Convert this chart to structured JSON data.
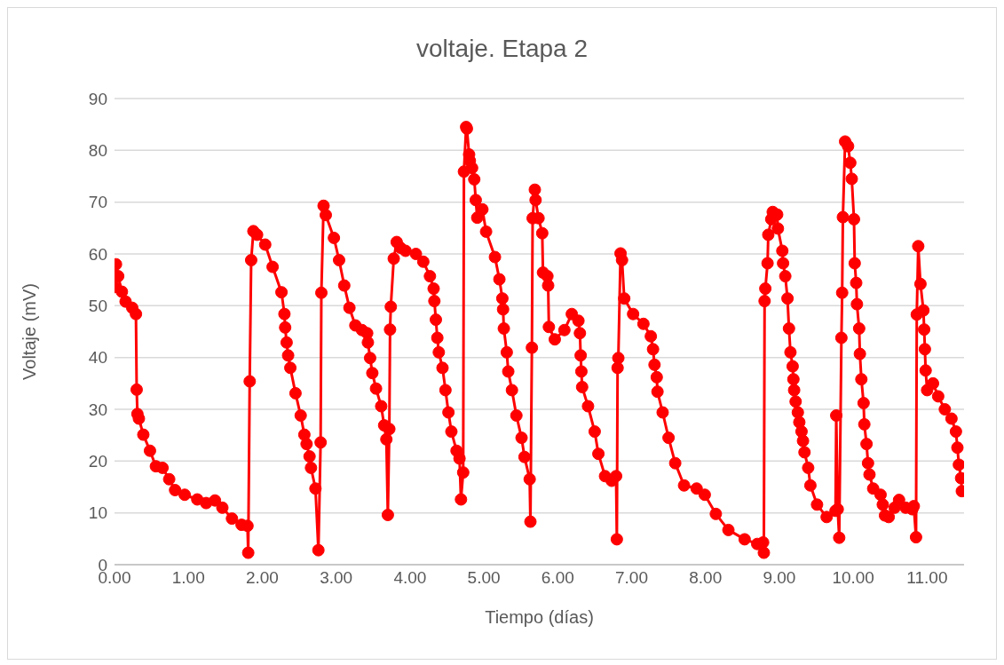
{
  "chart_data": {
    "type": "line",
    "title": "voltaje. Etapa 2",
    "xlabel": "Tiempo (días)",
    "ylabel": "Voltaje (mV)",
    "x": [
      0.0,
      0.02,
      0.05,
      0.1,
      0.15,
      0.24,
      0.29,
      0.3,
      0.31,
      0.33,
      0.39,
      0.48,
      0.56,
      0.65,
      0.74,
      0.82,
      0.95,
      1.12,
      1.24,
      1.36,
      1.46,
      1.59,
      1.72,
      1.8,
      1.81,
      1.83,
      1.85,
      1.88,
      1.93,
      2.04,
      2.14,
      2.26,
      2.3,
      2.31,
      2.33,
      2.35,
      2.38,
      2.45,
      2.52,
      2.57,
      2.6,
      2.64,
      2.66,
      2.72,
      2.76,
      2.79,
      2.8,
      2.83,
      2.86,
      2.97,
      3.04,
      3.11,
      3.18,
      3.26,
      3.35,
      3.42,
      3.43,
      3.46,
      3.49,
      3.54,
      3.61,
      3.65,
      3.68,
      3.7,
      3.72,
      3.73,
      3.74,
      3.78,
      3.82,
      3.87,
      3.94,
      4.08,
      4.18,
      4.27,
      4.32,
      4.33,
      4.35,
      4.37,
      4.39,
      4.44,
      4.48,
      4.52,
      4.56,
      4.63,
      4.67,
      4.69,
      4.72,
      4.73,
      4.76,
      4.77,
      4.8,
      4.81,
      4.84,
      4.87,
      4.89,
      4.91,
      4.98,
      5.03,
      5.15,
      5.21,
      5.25,
      5.26,
      5.27,
      5.31,
      5.33,
      5.38,
      5.44,
      5.51,
      5.55,
      5.62,
      5.63,
      5.65,
      5.66,
      5.69,
      5.7,
      5.74,
      5.79,
      5.8,
      5.86,
      5.87,
      5.88,
      5.96,
      6.09,
      6.19,
      6.28,
      6.3,
      6.31,
      6.32,
      6.33,
      6.41,
      6.5,
      6.55,
      6.64,
      6.73,
      6.79,
      6.8,
      6.81,
      6.82,
      6.85,
      6.87,
      6.9,
      7.02,
      7.16,
      7.26,
      7.29,
      7.31,
      7.34,
      7.35,
      7.42,
      7.5,
      7.59,
      7.71,
      7.88,
      7.99,
      8.14,
      8.31,
      8.53,
      8.7,
      8.78,
      8.79,
      8.8,
      8.81,
      8.84,
      8.85,
      8.89,
      8.91,
      8.97,
      8.98,
      9.04,
      9.05,
      9.08,
      9.11,
      9.13,
      9.15,
      9.18,
      9.19,
      9.2,
      9.22,
      9.25,
      9.27,
      9.3,
      9.32,
      9.34,
      9.39,
      9.42,
      9.51,
      9.64,
      9.76,
      9.77,
      9.79,
      9.81,
      9.84,
      9.85,
      9.86,
      9.89,
      9.93,
      9.96,
      9.98,
      10.01,
      10.02,
      10.04,
      10.05,
      10.08,
      10.09,
      10.11,
      10.14,
      10.15,
      10.18,
      10.2,
      10.22,
      10.27,
      10.37,
      10.4,
      10.43,
      10.48,
      10.56,
      10.62,
      10.71,
      10.8,
      10.82,
      10.85,
      10.86,
      10.88,
      10.91,
      10.95,
      10.96,
      10.97,
      10.98,
      11.0,
      11.08,
      11.15,
      11.24,
      11.33,
      11.39,
      11.41,
      11.43,
      11.46,
      11.47
    ],
    "series": [
      {
        "color": "#ff0000",
        "values": [
          53.6,
          58.0,
          55.7,
          52.7,
          50.8,
          49.6,
          48.4,
          33.8,
          29.1,
          28.2,
          25.1,
          22.0,
          19.0,
          18.7,
          16.5,
          14.4,
          13.5,
          12.6,
          11.9,
          12.4,
          11.0,
          8.9,
          7.7,
          7.5,
          2.3,
          35.4,
          58.8,
          64.4,
          63.7,
          61.8,
          57.5,
          52.6,
          48.4,
          45.8,
          42.9,
          40.4,
          38.0,
          33.1,
          28.8,
          25.1,
          23.3,
          20.9,
          18.7,
          14.7,
          2.8,
          23.6,
          52.5,
          69.3,
          67.5,
          63.1,
          58.8,
          53.9,
          49.6,
          46.2,
          45.3,
          44.7,
          42.9,
          39.9,
          37.0,
          34.0,
          30.6,
          26.9,
          24.2,
          9.6,
          26.2,
          45.4,
          49.8,
          59.1,
          62.3,
          61.2,
          60.6,
          60.0,
          58.5,
          55.7,
          53.3,
          50.9,
          47.3,
          43.8,
          41.0,
          38.0,
          33.7,
          29.4,
          25.7,
          22.0,
          20.5,
          12.6,
          17.8,
          75.9,
          84.5,
          84.2,
          79.2,
          78.0,
          76.6,
          74.4,
          70.4,
          67.0,
          68.6,
          64.3,
          59.4,
          55.1,
          51.4,
          49.3,
          45.6,
          41.0,
          37.3,
          33.7,
          28.8,
          24.5,
          20.8,
          16.5,
          8.3,
          41.9,
          66.9,
          72.4,
          70.4,
          66.9,
          64.0,
          56.4,
          55.7,
          53.9,
          45.9,
          43.5,
          45.3,
          48.4,
          47.1,
          44.7,
          40.4,
          37.3,
          34.3,
          30.6,
          25.7,
          21.4,
          17.1,
          16.2,
          17.1,
          4.9,
          38.0,
          39.9,
          60.1,
          58.8,
          51.4,
          48.4,
          46.5,
          44.1,
          41.6,
          38.6,
          36.2,
          33.4,
          29.4,
          24.5,
          19.6,
          15.3,
          14.7,
          13.5,
          9.8,
          6.7,
          4.9,
          4.0,
          4.3,
          2.3,
          50.9,
          53.3,
          58.2,
          63.7,
          66.7,
          68.1,
          67.6,
          64.9,
          60.6,
          58.2,
          55.7,
          51.4,
          45.6,
          41.0,
          38.3,
          35.8,
          33.7,
          31.5,
          29.4,
          27.5,
          25.7,
          23.9,
          21.7,
          18.7,
          15.3,
          11.6,
          9.2,
          10.4,
          28.8,
          10.7,
          5.2,
          43.8,
          52.5,
          67.1,
          81.7,
          80.8,
          77.6,
          74.5,
          66.7,
          58.2,
          54.4,
          50.3,
          45.6,
          40.7,
          35.8,
          31.2,
          27.1,
          23.3,
          19.6,
          17.4,
          14.7,
          13.5,
          11.6,
          9.5,
          9.2,
          11.0,
          12.5,
          11.0,
          10.7,
          11.3,
          5.3,
          48.3,
          61.5,
          54.2,
          49.1,
          45.4,
          41.6,
          37.5,
          33.7,
          35.0,
          32.5,
          30.0,
          28.2,
          25.7,
          22.6,
          19.3,
          16.7,
          14.2
        ]
      }
    ],
    "xlim": [
      0,
      11.5
    ],
    "xticks": [
      {
        "value": 0,
        "label": "0.00"
      },
      {
        "value": 1,
        "label": "1.00"
      },
      {
        "value": 2,
        "label": "2.00"
      },
      {
        "value": 3,
        "label": "3.00"
      },
      {
        "value": 4,
        "label": "4.00"
      },
      {
        "value": 5,
        "label": "5.00"
      },
      {
        "value": 6,
        "label": "6.00"
      },
      {
        "value": 7,
        "label": "7.00"
      },
      {
        "value": 8,
        "label": "8.00"
      },
      {
        "value": 9,
        "label": "9.00"
      },
      {
        "value": 10,
        "label": "10.00"
      },
      {
        "value": 11,
        "label": "11.00"
      }
    ],
    "ylim": [
      0,
      90
    ],
    "yticks": [
      0,
      10,
      20,
      30,
      40,
      50,
      60,
      70,
      80,
      90
    ],
    "grid": "y",
    "legend": false,
    "marker": "circle",
    "line_style": "solid"
  }
}
